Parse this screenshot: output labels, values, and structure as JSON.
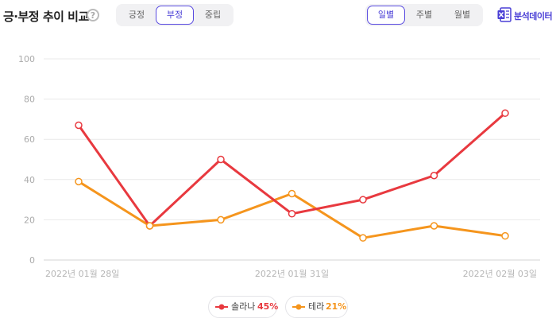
{
  "header": {
    "title": "긍·부정 추이 비교",
    "help_icon": "question-circle-icon",
    "sentiment_tabs": [
      {
        "label": "긍정",
        "active": false
      },
      {
        "label": "부정",
        "active": true
      },
      {
        "label": "중립",
        "active": false
      }
    ],
    "period_tabs": [
      {
        "label": "일별",
        "active": true
      },
      {
        "label": "주별",
        "active": false
      },
      {
        "label": "월별",
        "active": false
      }
    ],
    "analysis_label": "분석데이터",
    "analysis_icon": "excel-icon"
  },
  "chart_data": {
    "type": "line",
    "x": [
      "2022년 01월 28일",
      "2022년 01월 29일",
      "2022년 01월 30일",
      "2022년 01월 31일",
      "2022년 02월 01일",
      "2022년 02월 02일",
      "2022년 02월 03일"
    ],
    "x_tick_labels": [
      "2022년 01월 28일",
      "2022년 01월 31일",
      "2022년 02월 03일"
    ],
    "y_ticks": [
      "0",
      "20",
      "40",
      "60",
      "80",
      "100"
    ],
    "ylim": [
      0,
      100
    ],
    "grid": true,
    "series": [
      {
        "name": "솔라나",
        "share": "45%",
        "color": "#e8393f",
        "values": [
          67,
          17,
          50,
          23,
          30,
          42,
          73
        ]
      },
      {
        "name": "테라",
        "share": "21%",
        "color": "#f5951d",
        "values": [
          39,
          17,
          20,
          33,
          11,
          17,
          12
        ]
      }
    ],
    "legend_position": "bottom-center"
  }
}
